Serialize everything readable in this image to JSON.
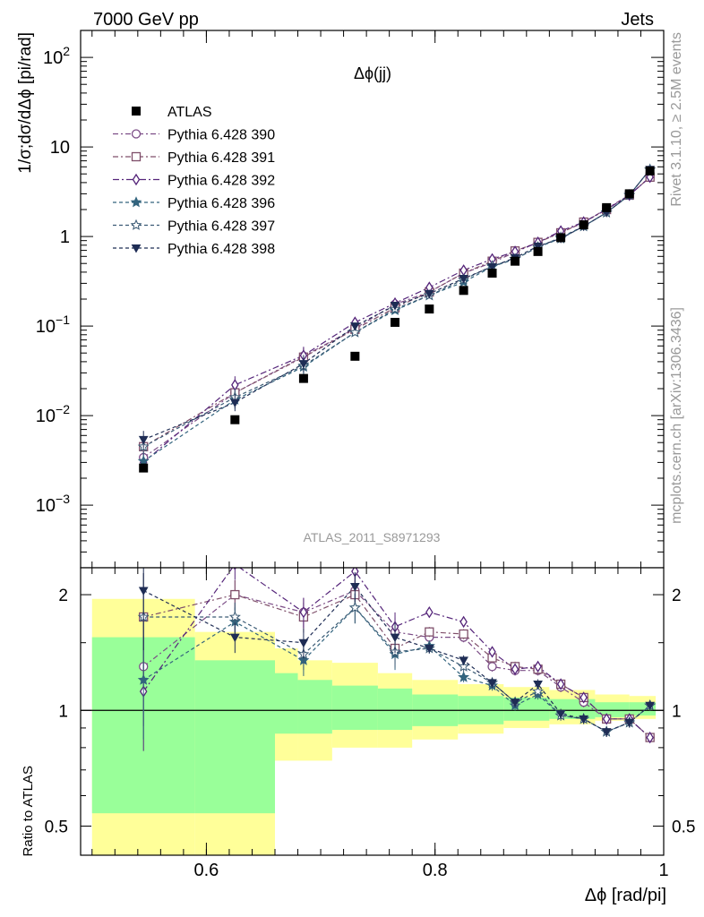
{
  "header": {
    "left": "7000 GeV pp",
    "right": "Jets"
  },
  "side_labels": {
    "top": "Rivet 3.1.10, ≥ 2.5M events",
    "bottom": "mcplots.cern.ch [arXiv:1306.3436]"
  },
  "chart_data": {
    "type": "scatter",
    "title": "Δϕ(jj)",
    "ylabel": "1/σ;dσ/dΔϕ [pi/rad]",
    "xlabel": "Δϕ [rad/pi]",
    "ratio_ylabel": "Ratio to ATLAS",
    "watermark": "ATLAS_2011_S8971293",
    "xlim": [
      0.49,
      1.0
    ],
    "ylim": [
      0.0002,
      200
    ],
    "yscale": "log",
    "ratio_ylim": [
      0.42,
      2.35
    ],
    "ratio_yscale": "log",
    "x_ticks": [
      "0.6",
      "0.8",
      "1"
    ],
    "y_ticks": [
      "10^-3",
      "10^-2",
      "10^-1",
      "1",
      "10",
      "10^2"
    ],
    "ratio_ticks": [
      "0.5",
      "1",
      "2"
    ],
    "x": [
      0.545,
      0.625,
      0.685,
      0.73,
      0.765,
      0.795,
      0.825,
      0.85,
      0.87,
      0.89,
      0.91,
      0.93,
      0.95,
      0.97,
      0.988
    ],
    "data": {
      "name": "ATLAS",
      "values": [
        0.0026,
        0.009,
        0.026,
        0.046,
        0.11,
        0.155,
        0.25,
        0.39,
        0.53,
        0.68,
        0.97,
        1.35,
        2.1,
        3.0,
        5.4
      ],
      "bands": [
        {
          "xmin": 0.5,
          "xmax": 0.59,
          "lo": 0.4,
          "hi": 1.95,
          "lo2": 0.54,
          "hi2": 1.55
        },
        {
          "xmin": 0.59,
          "xmax": 0.66,
          "lo": 0.4,
          "hi": 1.6,
          "lo2": 0.54,
          "hi2": 1.35
        },
        {
          "xmin": 0.66,
          "xmax": 0.68,
          "lo": 0.74,
          "hi": 1.45,
          "lo2": 0.87,
          "hi2": 1.25
        },
        {
          "xmin": 0.68,
          "xmax": 0.71,
          "lo": 0.74,
          "hi": 1.35,
          "lo2": 0.87,
          "hi2": 1.2
        },
        {
          "xmin": 0.71,
          "xmax": 0.75,
          "lo": 0.8,
          "hi": 1.33,
          "lo2": 0.89,
          "hi2": 1.16
        },
        {
          "xmin": 0.75,
          "xmax": 0.78,
          "lo": 0.8,
          "hi": 1.25,
          "lo2": 0.89,
          "hi2": 1.14
        },
        {
          "xmin": 0.78,
          "xmax": 0.82,
          "lo": 0.84,
          "hi": 1.2,
          "lo2": 0.91,
          "hi2": 1.1
        },
        {
          "xmin": 0.82,
          "xmax": 0.86,
          "lo": 0.87,
          "hi": 1.17,
          "lo2": 0.92,
          "hi2": 1.09
        },
        {
          "xmin": 0.86,
          "xmax": 0.9,
          "lo": 0.9,
          "hi": 1.15,
          "lo2": 0.94,
          "hi2": 1.08
        },
        {
          "xmin": 0.9,
          "xmax": 0.94,
          "lo": 0.92,
          "hi": 1.13,
          "lo2": 0.95,
          "hi2": 1.07
        },
        {
          "xmin": 0.94,
          "xmax": 0.97,
          "lo": 0.94,
          "hi": 1.1,
          "lo2": 0.96,
          "hi2": 1.05
        },
        {
          "xmin": 0.97,
          "xmax": 0.993,
          "lo": 0.95,
          "hi": 1.09,
          "lo2": 0.97,
          "hi2": 1.05
        }
      ]
    },
    "series": [
      {
        "name": "Pythia 6.428 390",
        "color": "#7b4c86",
        "marker": "circle-open",
        "values": [
          0.0034,
          0.018,
          0.046,
          0.094,
          0.175,
          0.24,
          0.39,
          0.51,
          0.67,
          0.86,
          1.12,
          1.42,
          2.05,
          2.9,
          4.6
        ],
        "ratio": [
          1.3,
          2.0,
          1.8,
          2.05,
          1.6,
          1.55,
          1.55,
          1.3,
          1.27,
          1.27,
          1.15,
          1.05,
          0.95,
          0.95,
          0.85
        ]
      },
      {
        "name": "Pythia 6.428 391",
        "color": "#7f4f6a",
        "marker": "square-open",
        "values": [
          0.0045,
          0.018,
          0.045,
          0.092,
          0.16,
          0.24,
          0.39,
          0.53,
          0.69,
          0.86,
          1.1,
          1.45,
          2.0,
          2.9,
          4.6
        ],
        "ratio": [
          1.75,
          2.0,
          1.75,
          2.0,
          1.45,
          1.6,
          1.58,
          1.37,
          1.3,
          1.28,
          1.17,
          1.08,
          0.95,
          0.95,
          0.85
        ]
      },
      {
        "name": "Pythia 6.428 392",
        "color": "#55257a",
        "marker": "diamond-open",
        "values": [
          0.003,
          0.022,
          0.047,
          0.11,
          0.18,
          0.27,
          0.42,
          0.56,
          0.68,
          0.86,
          1.15,
          1.45,
          2.0,
          2.9,
          4.6
        ],
        "ratio": [
          1.12,
          2.4,
          1.8,
          2.3,
          1.65,
          1.8,
          1.7,
          1.42,
          1.28,
          1.3,
          1.17,
          1.08,
          0.95,
          0.95,
          0.85
        ]
      },
      {
        "name": "Pythia 6.428 396",
        "color": "#33647e",
        "marker": "star",
        "values": [
          0.0031,
          0.015,
          0.035,
          0.085,
          0.15,
          0.22,
          0.31,
          0.46,
          0.56,
          0.76,
          0.95,
          1.3,
          1.85,
          2.9,
          5.6
        ],
        "ratio": [
          1.2,
          1.7,
          1.35,
          1.85,
          1.4,
          1.47,
          1.22,
          1.16,
          1.03,
          1.1,
          0.97,
          0.95,
          0.88,
          0.93,
          1.03
        ]
      },
      {
        "name": "Pythia 6.428 397",
        "color": "#3a5a74",
        "marker": "star-open",
        "values": [
          0.0045,
          0.016,
          0.036,
          0.085,
          0.155,
          0.22,
          0.33,
          0.47,
          0.56,
          0.76,
          0.98,
          1.3,
          1.85,
          2.9,
          5.6
        ],
        "ratio": [
          1.75,
          1.75,
          1.4,
          1.85,
          1.42,
          1.45,
          1.3,
          1.18,
          1.05,
          1.12,
          0.97,
          0.95,
          0.88,
          0.93,
          1.03
        ]
      },
      {
        "name": "Pythia 6.428 398",
        "color": "#1f2d55",
        "marker": "triangle-down",
        "values": [
          0.0054,
          0.014,
          0.038,
          0.1,
          0.17,
          0.23,
          0.34,
          0.46,
          0.58,
          0.78,
          0.95,
          1.3,
          1.85,
          2.9,
          5.6
        ],
        "ratio": [
          2.05,
          1.55,
          1.5,
          2.1,
          1.55,
          1.45,
          1.35,
          1.18,
          1.05,
          1.17,
          0.98,
          0.95,
          0.88,
          0.93,
          1.03
        ]
      }
    ]
  }
}
